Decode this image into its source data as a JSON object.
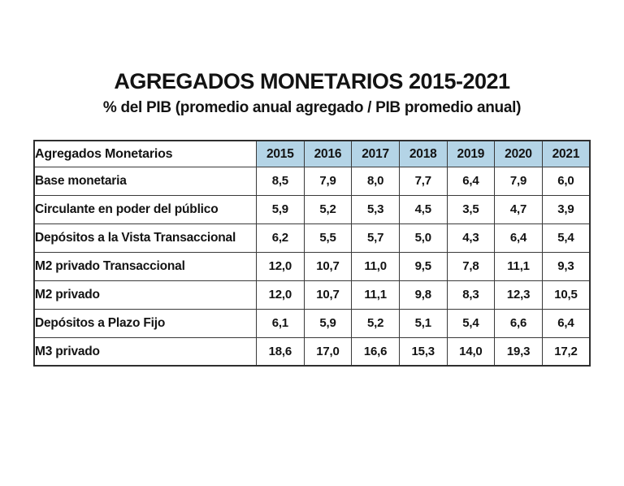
{
  "title": "AGREGADOS MONETARIOS 2015-2021",
  "subtitle": "% del PIB (promedio anual agregado / PIB promedio anual)",
  "table": {
    "corner_label": "Agregados Monetarios",
    "years": [
      "2015",
      "2016",
      "2017",
      "2018",
      "2019",
      "2020",
      "2021"
    ],
    "rows": [
      {
        "label": "Base monetaria",
        "values": [
          "8,5",
          "7,9",
          "8,0",
          "7,7",
          "6,4",
          "7,9",
          "6,0"
        ]
      },
      {
        "label": "Circulante en poder del público",
        "values": [
          "5,9",
          "5,2",
          "5,3",
          "4,5",
          "3,5",
          "4,7",
          "3,9"
        ]
      },
      {
        "label": "Depósitos a la Vista Transaccional",
        "values": [
          "6,2",
          "5,5",
          "5,7",
          "5,0",
          "4,3",
          "6,4",
          "5,4"
        ]
      },
      {
        "label": "M2 privado Transaccional",
        "values": [
          "12,0",
          "10,7",
          "11,0",
          "9,5",
          "7,8",
          "11,1",
          "9,3"
        ]
      },
      {
        "label": "M2 privado",
        "values": [
          "12,0",
          "10,7",
          "11,1",
          "9,8",
          "8,3",
          "12,3",
          "10,5"
        ]
      },
      {
        "label": "Depósitos a Plazo Fijo",
        "values": [
          "6,1",
          "5,9",
          "5,2",
          "5,1",
          "5,4",
          "6,6",
          "6,4"
        ]
      },
      {
        "label": "M3 privado",
        "values": [
          "18,6",
          "17,0",
          "16,6",
          "15,3",
          "14,0",
          "19,3",
          "17,2"
        ]
      }
    ]
  },
  "colors": {
    "year_header_bg": "#b4d4e6",
    "inner_border": "#3a3a3a",
    "outer_border": "#2f2f2f",
    "text": "#131313",
    "background": "#ffffff"
  },
  "chart_data": {
    "type": "table",
    "title": "AGREGADOS MONETARIOS 2015-2021",
    "subtitle": "% del PIB (promedio anual agregado / PIB promedio anual)",
    "unit": "% del PIB",
    "categories": [
      2015,
      2016,
      2017,
      2018,
      2019,
      2020,
      2021
    ],
    "series": [
      {
        "name": "Base monetaria",
        "values": [
          8.5,
          7.9,
          8.0,
          7.7,
          6.4,
          7.9,
          6.0
        ]
      },
      {
        "name": "Circulante en poder del público",
        "values": [
          5.9,
          5.2,
          5.3,
          4.5,
          3.5,
          4.7,
          3.9
        ]
      },
      {
        "name": "Depósitos a la Vista Transaccional",
        "values": [
          6.2,
          5.5,
          5.7,
          5.0,
          4.3,
          6.4,
          5.4
        ]
      },
      {
        "name": "M2 privado Transaccional",
        "values": [
          12.0,
          10.7,
          11.0,
          9.5,
          7.8,
          11.1,
          9.3
        ]
      },
      {
        "name": "M2 privado",
        "values": [
          12.0,
          10.7,
          11.1,
          9.8,
          8.3,
          12.3,
          10.5
        ]
      },
      {
        "name": "Depósitos a Plazo Fijo",
        "values": [
          6.1,
          5.9,
          5.2,
          5.1,
          5.4,
          6.6,
          6.4
        ]
      },
      {
        "name": "M3 privado",
        "values": [
          18.6,
          17.0,
          16.6,
          15.3,
          14.0,
          19.3,
          17.2
        ]
      }
    ]
  }
}
